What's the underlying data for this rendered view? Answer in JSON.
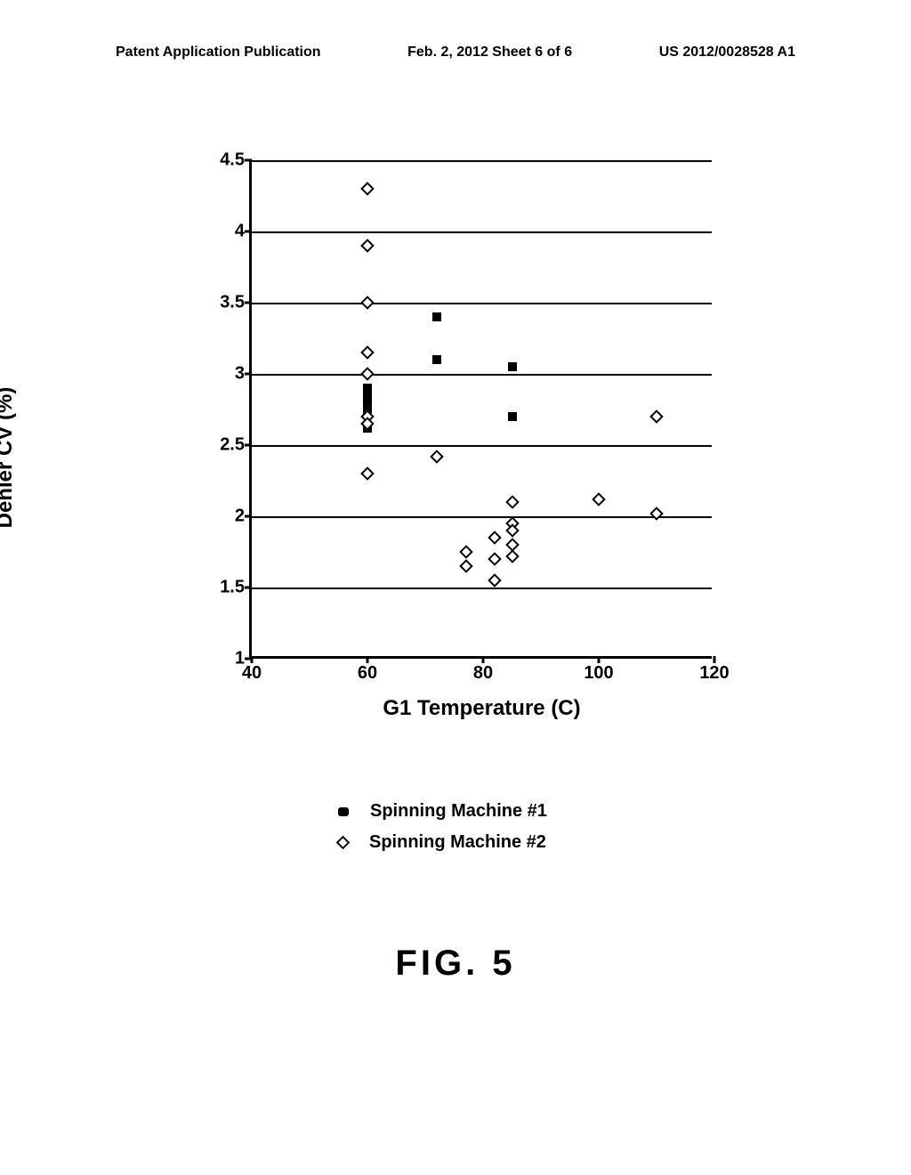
{
  "header": {
    "left": "Patent Application Publication",
    "center": "Feb. 2, 2012  Sheet 6 of 6",
    "right": "US 2012/0028528 A1"
  },
  "chart": {
    "type": "scatter",
    "xlabel": "G1 Temperature (C)",
    "ylabel": "Denier CV (%)",
    "xlim": [
      40,
      120
    ],
    "ylim": [
      1,
      4.5
    ],
    "xticks": [
      40,
      60,
      80,
      100,
      120
    ],
    "yticks": [
      1,
      1.5,
      2,
      2.5,
      3,
      3.5,
      4,
      4.5
    ],
    "gridlines_y": [
      1.5,
      2,
      2.5,
      3,
      3.5,
      4,
      4.5
    ],
    "background_color": "#ffffff",
    "grid_color": "#000000",
    "axis_color": "#000000",
    "label_fontsize": 24,
    "tick_fontsize": 20,
    "series": [
      {
        "name": "Spinning Machine #1",
        "marker": "square-filled",
        "color": "#000000",
        "points": [
          [
            60,
            2.85
          ],
          [
            60,
            2.8
          ],
          [
            60,
            2.75
          ],
          [
            60,
            2.9
          ],
          [
            60,
            2.62
          ],
          [
            72,
            3.4
          ],
          [
            72,
            3.1
          ],
          [
            85,
            3.05
          ],
          [
            85,
            2.7
          ]
        ]
      },
      {
        "name": "Spinning Machine #2",
        "marker": "diamond-open",
        "color": "#000000",
        "points": [
          [
            60,
            4.3
          ],
          [
            60,
            3.9
          ],
          [
            60,
            3.5
          ],
          [
            60,
            3.15
          ],
          [
            60,
            3.0
          ],
          [
            60,
            2.7
          ],
          [
            60,
            2.65
          ],
          [
            60,
            2.3
          ],
          [
            72,
            2.42
          ],
          [
            77,
            1.75
          ],
          [
            77,
            1.65
          ],
          [
            82,
            1.85
          ],
          [
            82,
            1.7
          ],
          [
            82,
            1.55
          ],
          [
            85,
            2.1
          ],
          [
            85,
            1.95
          ],
          [
            85,
            1.9
          ],
          [
            85,
            1.8
          ],
          [
            85,
            1.72
          ],
          [
            100,
            2.12
          ],
          [
            110,
            2.7
          ],
          [
            110,
            2.02
          ]
        ]
      }
    ]
  },
  "legend": {
    "items": [
      {
        "label": "Spinning Machine #1",
        "marker": "square-filled"
      },
      {
        "label": "Spinning Machine #2",
        "marker": "diamond-open"
      }
    ]
  },
  "figure_label": "FIG. 5"
}
